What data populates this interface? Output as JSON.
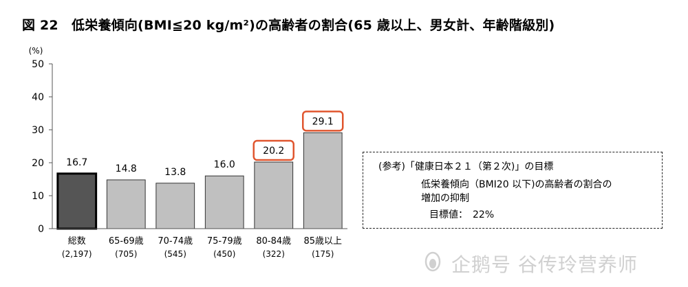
{
  "title": "図 22　低栄養傾向(BMI≦20 kg/m²)の高齢者の割合(65 歳以上、男女計、年齢階級別)",
  "chart_data": {
    "type": "bar",
    "unit_label": "(%)",
    "ylim": [
      0,
      50
    ],
    "yticks": [
      0,
      10,
      20,
      30,
      40,
      50
    ],
    "grid": false,
    "categories": [
      "総数",
      "65-69歳",
      "70-74歳",
      "75-79歳",
      "80-84歳",
      "85歳以上"
    ],
    "counts": [
      "(2,197)",
      "(705)",
      "(545)",
      "(450)",
      "(322)",
      "(175)"
    ],
    "values": [
      16.7,
      14.8,
      13.8,
      16.0,
      20.2,
      29.1
    ],
    "value_labels": [
      "16.7",
      "14.8",
      "13.8",
      "16.0",
      "20.2",
      "29.1"
    ],
    "highlighted_bar_indices": [
      0
    ],
    "boxed_label_indices": [
      4,
      5
    ],
    "colors": {
      "bar": "#c0c0c0",
      "bar_highlight": "#555555",
      "bar_border": "#333333",
      "highlight_border": "#000000",
      "label_box": "#e0552e"
    }
  },
  "reference_note": {
    "heading": "(参考)「健康日本２１（第２次)」の目標",
    "line1": "低栄養傾向（BMI20 以下)の高齢者の割合の",
    "line2": "増加の抑制",
    "line3": "目標値：　22%"
  },
  "watermark": {
    "text": "企鹅号 谷传玲营养师",
    "icon": "penguin-icon"
  }
}
